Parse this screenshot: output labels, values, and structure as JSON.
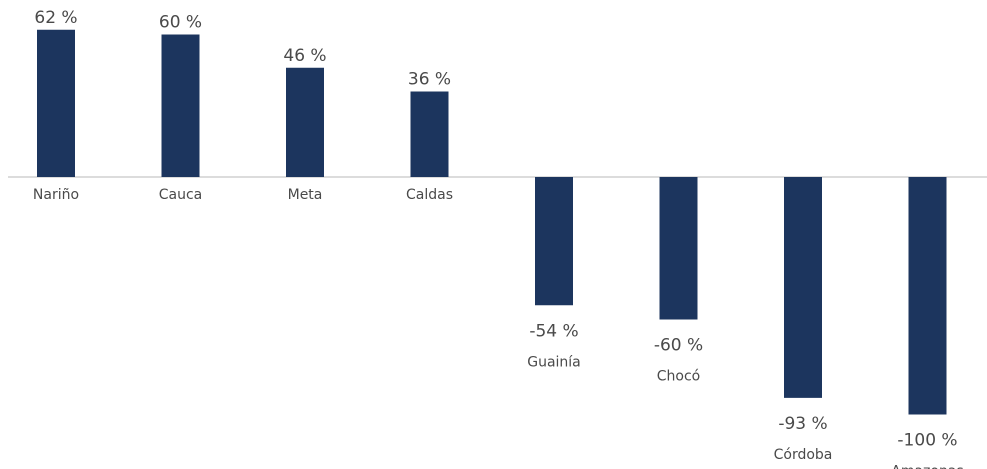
{
  "chart_data": {
    "type": "bar",
    "categories": [
      "Nariño",
      "Cauca",
      "Meta",
      "Caldas",
      "Guainía",
      "Chocó",
      "Córdoba",
      "Amazonas"
    ],
    "values": [
      62,
      60,
      46,
      36,
      -54,
      -60,
      -93,
      -100
    ],
    "value_labels": [
      "62 %",
      "60 %",
      "46 %",
      "36 %",
      "-54 %",
      "-60 %",
      "-93 %",
      "-100 %"
    ],
    "title": "",
    "xlabel": "",
    "ylabel": "",
    "ylim": [
      -100,
      62
    ],
    "grid": false,
    "legend": "none",
    "colors": {
      "bar": "#1c355e",
      "axis": "#d0d0d0",
      "text": "#4a4a4a"
    }
  }
}
